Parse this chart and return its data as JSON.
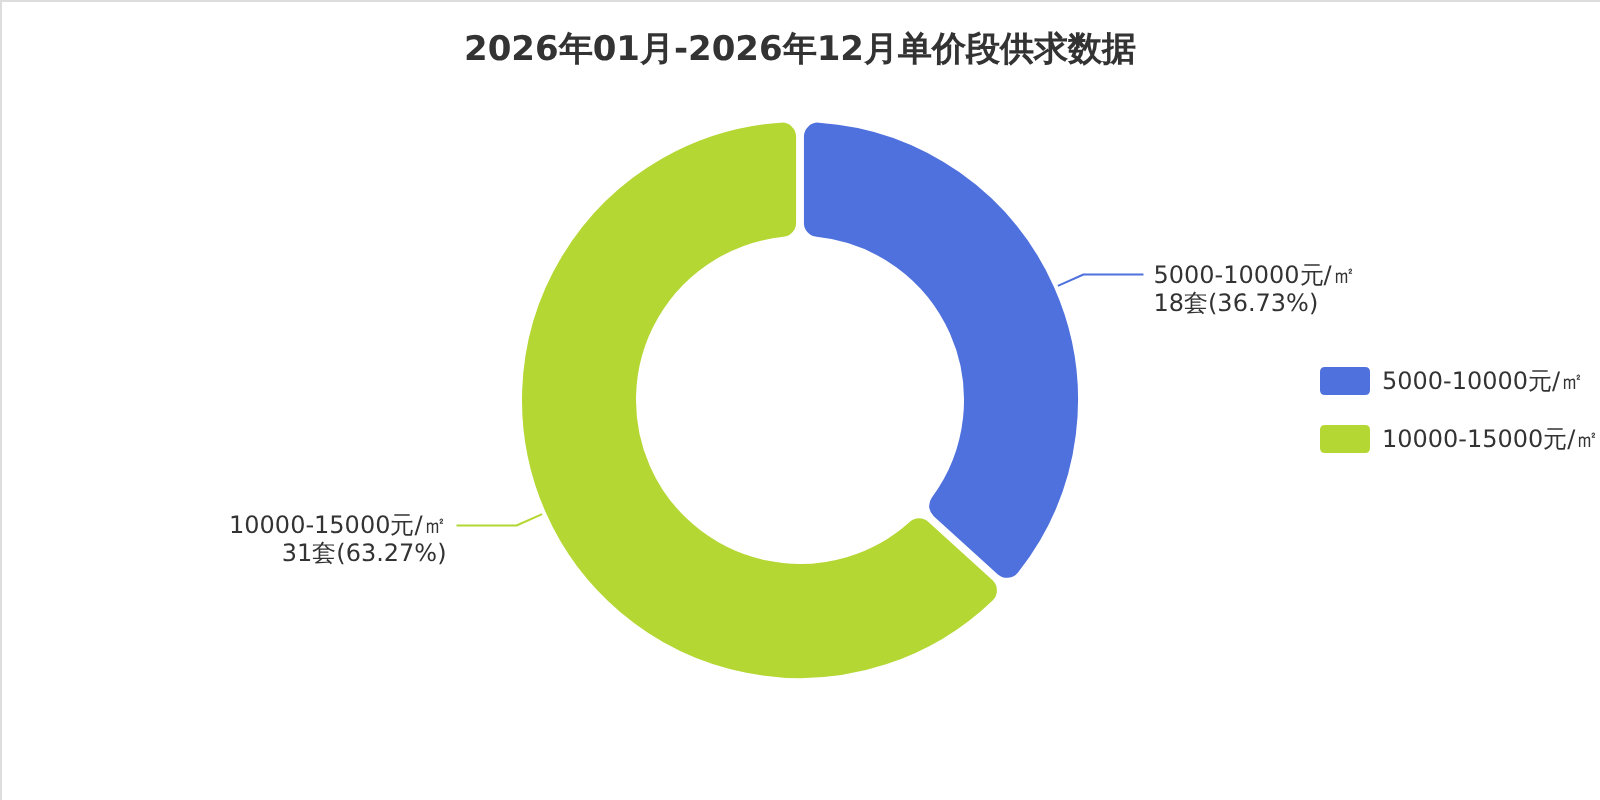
{
  "chart_data": {
    "type": "donut",
    "title": "2026年01月-2026年12月单价段供求数据",
    "categories": [
      "5000-10000元/㎡",
      "10000-15000元/㎡"
    ],
    "values": [
      18,
      31
    ],
    "colors": [
      "#4f71de",
      "#b5d733"
    ],
    "value_labels": [
      "18套(36.73%)",
      "31套(63.27%)"
    ],
    "legend": "right"
  }
}
